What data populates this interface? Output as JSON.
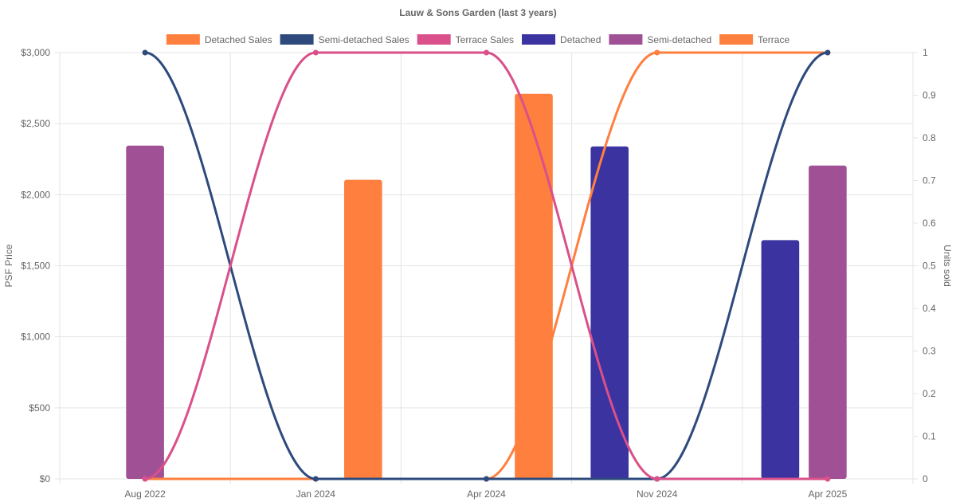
{
  "chart_data": {
    "type": "bar",
    "title": "Lauw & Sons Garden (last 3 years)",
    "categories": [
      "Aug 2022",
      "Jan 2024",
      "Apr 2024",
      "Nov 2024",
      "Apr 2025"
    ],
    "y_left": {
      "label": "PSF Price",
      "min": 0,
      "max": 3000,
      "ticks": [
        "$0",
        "$500",
        "$1,000",
        "$1,500",
        "$2,000",
        "$2,500",
        "$3,000"
      ]
    },
    "y_right": {
      "label": "Units sold",
      "min": 0,
      "max": 1,
      "ticks": [
        "0",
        "0.1",
        "0.2",
        "0.3",
        "0.4",
        "0.5",
        "0.6",
        "0.7",
        "0.8",
        "0.9",
        "1"
      ]
    },
    "grid": true,
    "legend_position": "top",
    "legend": [
      "Detached Sales",
      "Semi-detached Sales",
      "Terrace Sales",
      "Detached",
      "Semi-detached",
      "Terrace"
    ],
    "line_series": [
      {
        "name": "Detached Sales",
        "axis": "right",
        "color": "#ff7f3f",
        "values": [
          0,
          0,
          0,
          1,
          1
        ]
      },
      {
        "name": "Semi-detached Sales",
        "axis": "right",
        "color": "#2e4a7d",
        "values": [
          1,
          0,
          0,
          0,
          1
        ]
      },
      {
        "name": "Terrace Sales",
        "axis": "right",
        "color": "#d9508a",
        "values": [
          0,
          1,
          1,
          0,
          0
        ]
      }
    ],
    "bar_series": [
      {
        "name": "Detached",
        "axis": "left",
        "color": "#3a33a0",
        "values": [
          null,
          null,
          null,
          2340,
          1680
        ]
      },
      {
        "name": "Semi-detached",
        "axis": "left",
        "color": "#a05195",
        "values": [
          2345,
          null,
          null,
          null,
          2205
        ]
      },
      {
        "name": "Terrace",
        "axis": "left",
        "color": "#ff7f3f",
        "values": [
          null,
          2105,
          2710,
          null,
          null
        ]
      }
    ]
  }
}
